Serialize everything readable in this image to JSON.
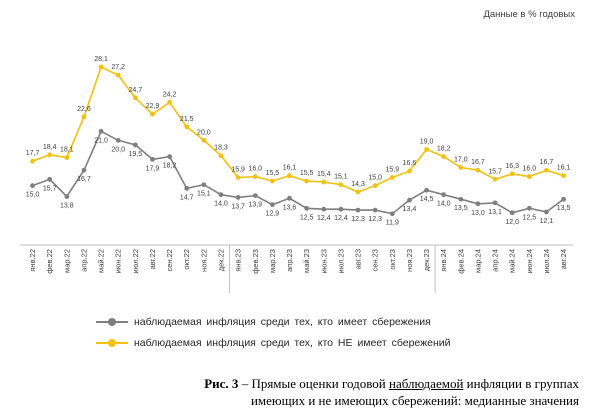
{
  "chart_data": {
    "type": "line",
    "units_label": "Данные в % годовых",
    "x": [
      "янв.22",
      "фев.22",
      "мар.22",
      "апр.22",
      "май.22",
      "июн.22",
      "июл.22",
      "авг.22",
      "сен.22",
      "окт.22",
      "ноя.22",
      "дек.22",
      "янв.23",
      "фев.23",
      "мар.23",
      "апр.23",
      "май.23",
      "июн.23",
      "июл.23",
      "авг.23",
      "сен.23",
      "окт.23",
      "ноя.23",
      "дек.23",
      "янв.24",
      "фев.24",
      "мар.24",
      "апр.24",
      "май.24",
      "июн.24",
      "июл.24",
      "авг.24"
    ],
    "series": [
      {
        "name": "наблюдаемая инфляция среди тех, кто имеет сбережения",
        "color": "#7f7f7f",
        "values": [
          15.0,
          15.7,
          13.8,
          16.7,
          21.0,
          20.0,
          19.5,
          17.9,
          18.2,
          14.7,
          15.1,
          14.0,
          13.7,
          13.9,
          12.9,
          13.6,
          12.5,
          12.4,
          12.4,
          12.3,
          12.3,
          11.9,
          13.4,
          14.5,
          14.0,
          13.5,
          13.0,
          13.1,
          12.0,
          12.5,
          12.1,
          13.5
        ],
        "labels": [
          "15,0",
          "15,7",
          "13,8",
          "16,7",
          "21,0",
          "20,0",
          "19,5",
          "17,9",
          "18,2",
          "14,7",
          "15,1",
          "14,0",
          "13,7",
          "13,9",
          "12,9",
          "13,6",
          "12,5",
          "12,4",
          "12,4",
          "12,3",
          "12,3",
          "11,9",
          "13,4",
          "14,5",
          "14,0",
          "13,5",
          "13,0",
          "13,1",
          "12,0",
          "12,5",
          "12,1",
          "13,5"
        ]
      },
      {
        "name": "наблюдаемая инфляция среди тех, кто НЕ имеет сбережений",
        "color": "#f2c010",
        "values": [
          17.7,
          18.4,
          18.1,
          22.6,
          28.1,
          27.2,
          24.7,
          22.9,
          24.2,
          21.5,
          20.0,
          18.3,
          15.9,
          16.0,
          15.5,
          16.1,
          15.5,
          15.4,
          15.1,
          14.3,
          15.0,
          15.9,
          16.6,
          19.0,
          18.2,
          17.0,
          16.7,
          15.7,
          16.3,
          16.0,
          16.7,
          16.1
        ],
        "labels": [
          "17,7",
          "18,4",
          "18,1",
          "22,6",
          "28,1",
          "27,2",
          "24,7",
          "22,9",
          "24,2",
          "21,5",
          "20,0",
          "18,3",
          "15,9",
          "16,0",
          "15,5",
          "16,1",
          "15,5",
          "15,4",
          "15,1",
          "14,3",
          "15,0",
          "15,9",
          "16,6",
          "19,0",
          "18,2",
          "17,0",
          "16,7",
          "15,7",
          "16,3",
          "16,0",
          "16,7",
          "16,1"
        ]
      }
    ],
    "y_axis_visible": false,
    "grid": false,
    "legend_position": "bottom"
  },
  "caption": {
    "fig_label": "Рис. 3",
    "text_before": " – Прямые оценки годовой ",
    "underlined": "наблюдаемой",
    "text_after": " инфляции в группах",
    "line2": "имеющих и не имеющих сбережений: медианные значения"
  }
}
